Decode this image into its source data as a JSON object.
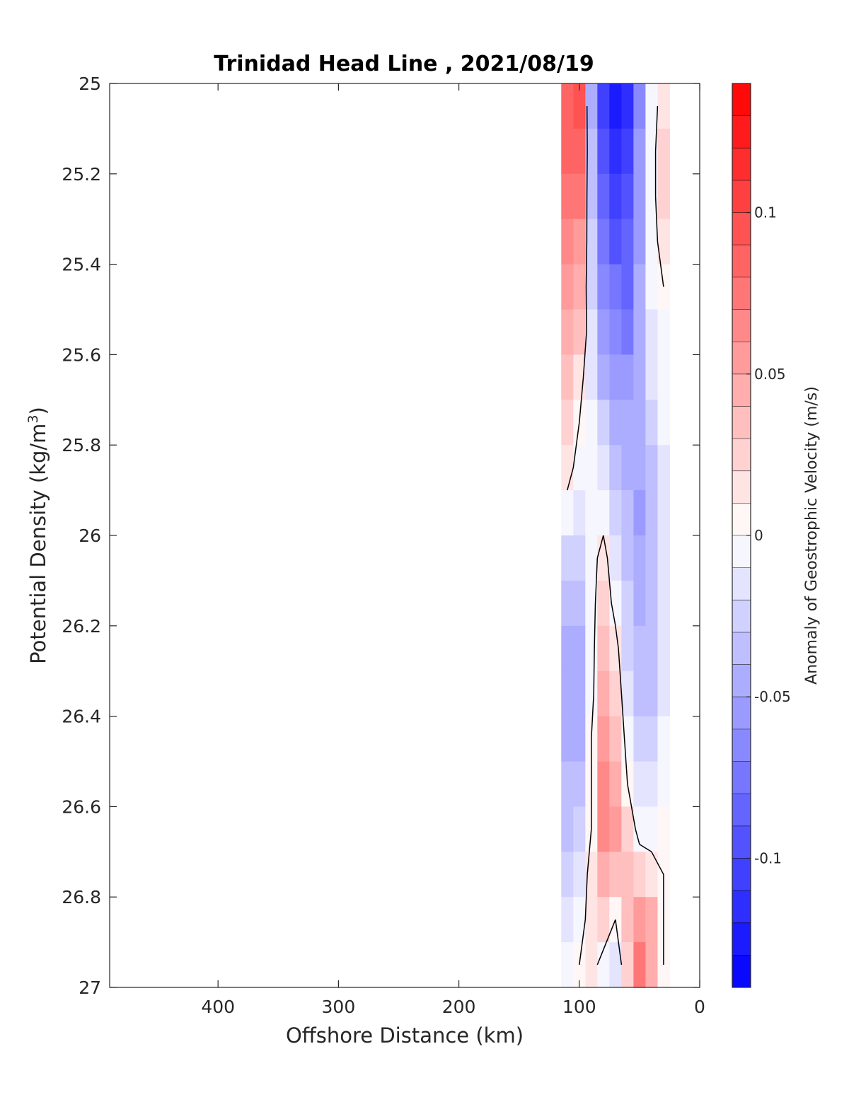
{
  "chart_data": {
    "type": "heatmap",
    "title": "Trinidad Head Line , 2021/08/19",
    "xlabel": "Offshore Distance (km)",
    "ylabel": "Potential Density (kg/m",
    "ylabel_sup": "3",
    "ylabel_tail": ")",
    "colorbar_label": "Anomaly of Geostrophic Velocity (m/s)",
    "xlim": [
      490,
      0
    ],
    "ylim": [
      25,
      27
    ],
    "x_ticks": [
      400,
      300,
      200,
      100,
      0
    ],
    "x_tick_labels": [
      "400",
      "300",
      "200",
      "100",
      "0"
    ],
    "y_ticks": [
      25,
      25.2,
      25.4,
      25.6,
      25.8,
      26,
      26.2,
      26.4,
      26.6,
      26.8,
      27
    ],
    "y_tick_labels": [
      "25",
      "25.2",
      "25.4",
      "25.6",
      "25.8",
      "26",
      "26.2",
      "26.4",
      "26.6",
      "26.8",
      "27"
    ],
    "colorbar": {
      "min": -0.14,
      "max": 0.14,
      "step": 0.01,
      "ticks": [
        0.1,
        0.05,
        0,
        -0.05,
        -0.1
      ],
      "tick_labels": [
        "0.1",
        "0.05",
        "0",
        "-0.05",
        "-0.1"
      ],
      "max_color": "#ff0000",
      "min_color": "#0000ff",
      "mid_color": "#ffffff"
    },
    "grid": false,
    "x": [
      110,
      100,
      90,
      80,
      70,
      60,
      50,
      40,
      30
    ],
    "y": [
      25,
      25.1,
      25.2,
      25.3,
      25.4,
      25.5,
      25.6,
      25.7,
      25.8,
      25.9,
      26,
      26.1,
      26.2,
      26.3,
      26.4,
      26.5,
      26.6,
      26.7,
      26.8,
      26.9
    ],
    "z": [
      [
        0.08,
        0.09,
        -0.05,
        -0.11,
        -0.13,
        -0.12,
        -0.07,
        -0.01,
        0.01
      ],
      [
        0.08,
        0.08,
        -0.04,
        -0.1,
        -0.12,
        -0.11,
        -0.06,
        -0.01,
        0.02
      ],
      [
        0.07,
        0.07,
        -0.04,
        -0.09,
        -0.11,
        -0.1,
        -0.06,
        -0.01,
        0.02
      ],
      [
        0.06,
        0.05,
        -0.03,
        -0.08,
        -0.1,
        -0.09,
        -0.06,
        -0.01,
        0.01
      ],
      [
        0.05,
        0.04,
        -0.03,
        -0.07,
        -0.08,
        -0.09,
        -0.05,
        -0.01,
        0.0
      ],
      [
        0.04,
        0.03,
        -0.02,
        -0.06,
        -0.07,
        -0.08,
        -0.05,
        -0.02,
        -0.01
      ],
      [
        0.03,
        0.01,
        -0.02,
        -0.05,
        -0.06,
        -0.06,
        -0.05,
        -0.02,
        -0.01
      ],
      [
        0.02,
        0.0,
        -0.01,
        -0.03,
        -0.05,
        -0.05,
        -0.05,
        -0.03,
        -0.01
      ],
      [
        0.01,
        -0.01,
        -0.01,
        -0.02,
        -0.04,
        -0.05,
        -0.05,
        -0.04,
        -0.02
      ],
      [
        -0.01,
        -0.02,
        -0.01,
        -0.01,
        -0.03,
        -0.04,
        -0.06,
        -0.04,
        -0.02
      ],
      [
        -0.03,
        -0.03,
        -0.01,
        0.01,
        -0.02,
        -0.04,
        -0.05,
        -0.04,
        -0.02
      ],
      [
        -0.04,
        -0.04,
        -0.01,
        0.02,
        -0.01,
        -0.03,
        -0.05,
        -0.04,
        -0.02
      ],
      [
        -0.05,
        -0.05,
        -0.01,
        0.03,
        0.01,
        -0.03,
        -0.04,
        -0.04,
        -0.02
      ],
      [
        -0.05,
        -0.05,
        -0.01,
        0.04,
        0.02,
        -0.02,
        -0.04,
        -0.04,
        -0.02
      ],
      [
        -0.05,
        -0.05,
        0.0,
        0.05,
        0.03,
        -0.01,
        -0.03,
        -0.03,
        -0.01
      ],
      [
        -0.04,
        -0.04,
        0.0,
        0.06,
        0.04,
        0.0,
        -0.02,
        -0.02,
        -0.01
      ],
      [
        -0.04,
        -0.03,
        0.0,
        0.06,
        0.05,
        0.02,
        -0.01,
        -0.01,
        0.0
      ],
      [
        -0.03,
        -0.02,
        0.01,
        0.04,
        0.03,
        0.03,
        0.02,
        0.01,
        0.0
      ],
      [
        -0.02,
        -0.01,
        0.01,
        0.02,
        0.0,
        0.03,
        0.05,
        0.04,
        0.0
      ],
      [
        -0.01,
        0.0,
        0.01,
        -0.01,
        -0.02,
        0.02,
        0.07,
        0.04,
        0.0
      ]
    ]
  }
}
